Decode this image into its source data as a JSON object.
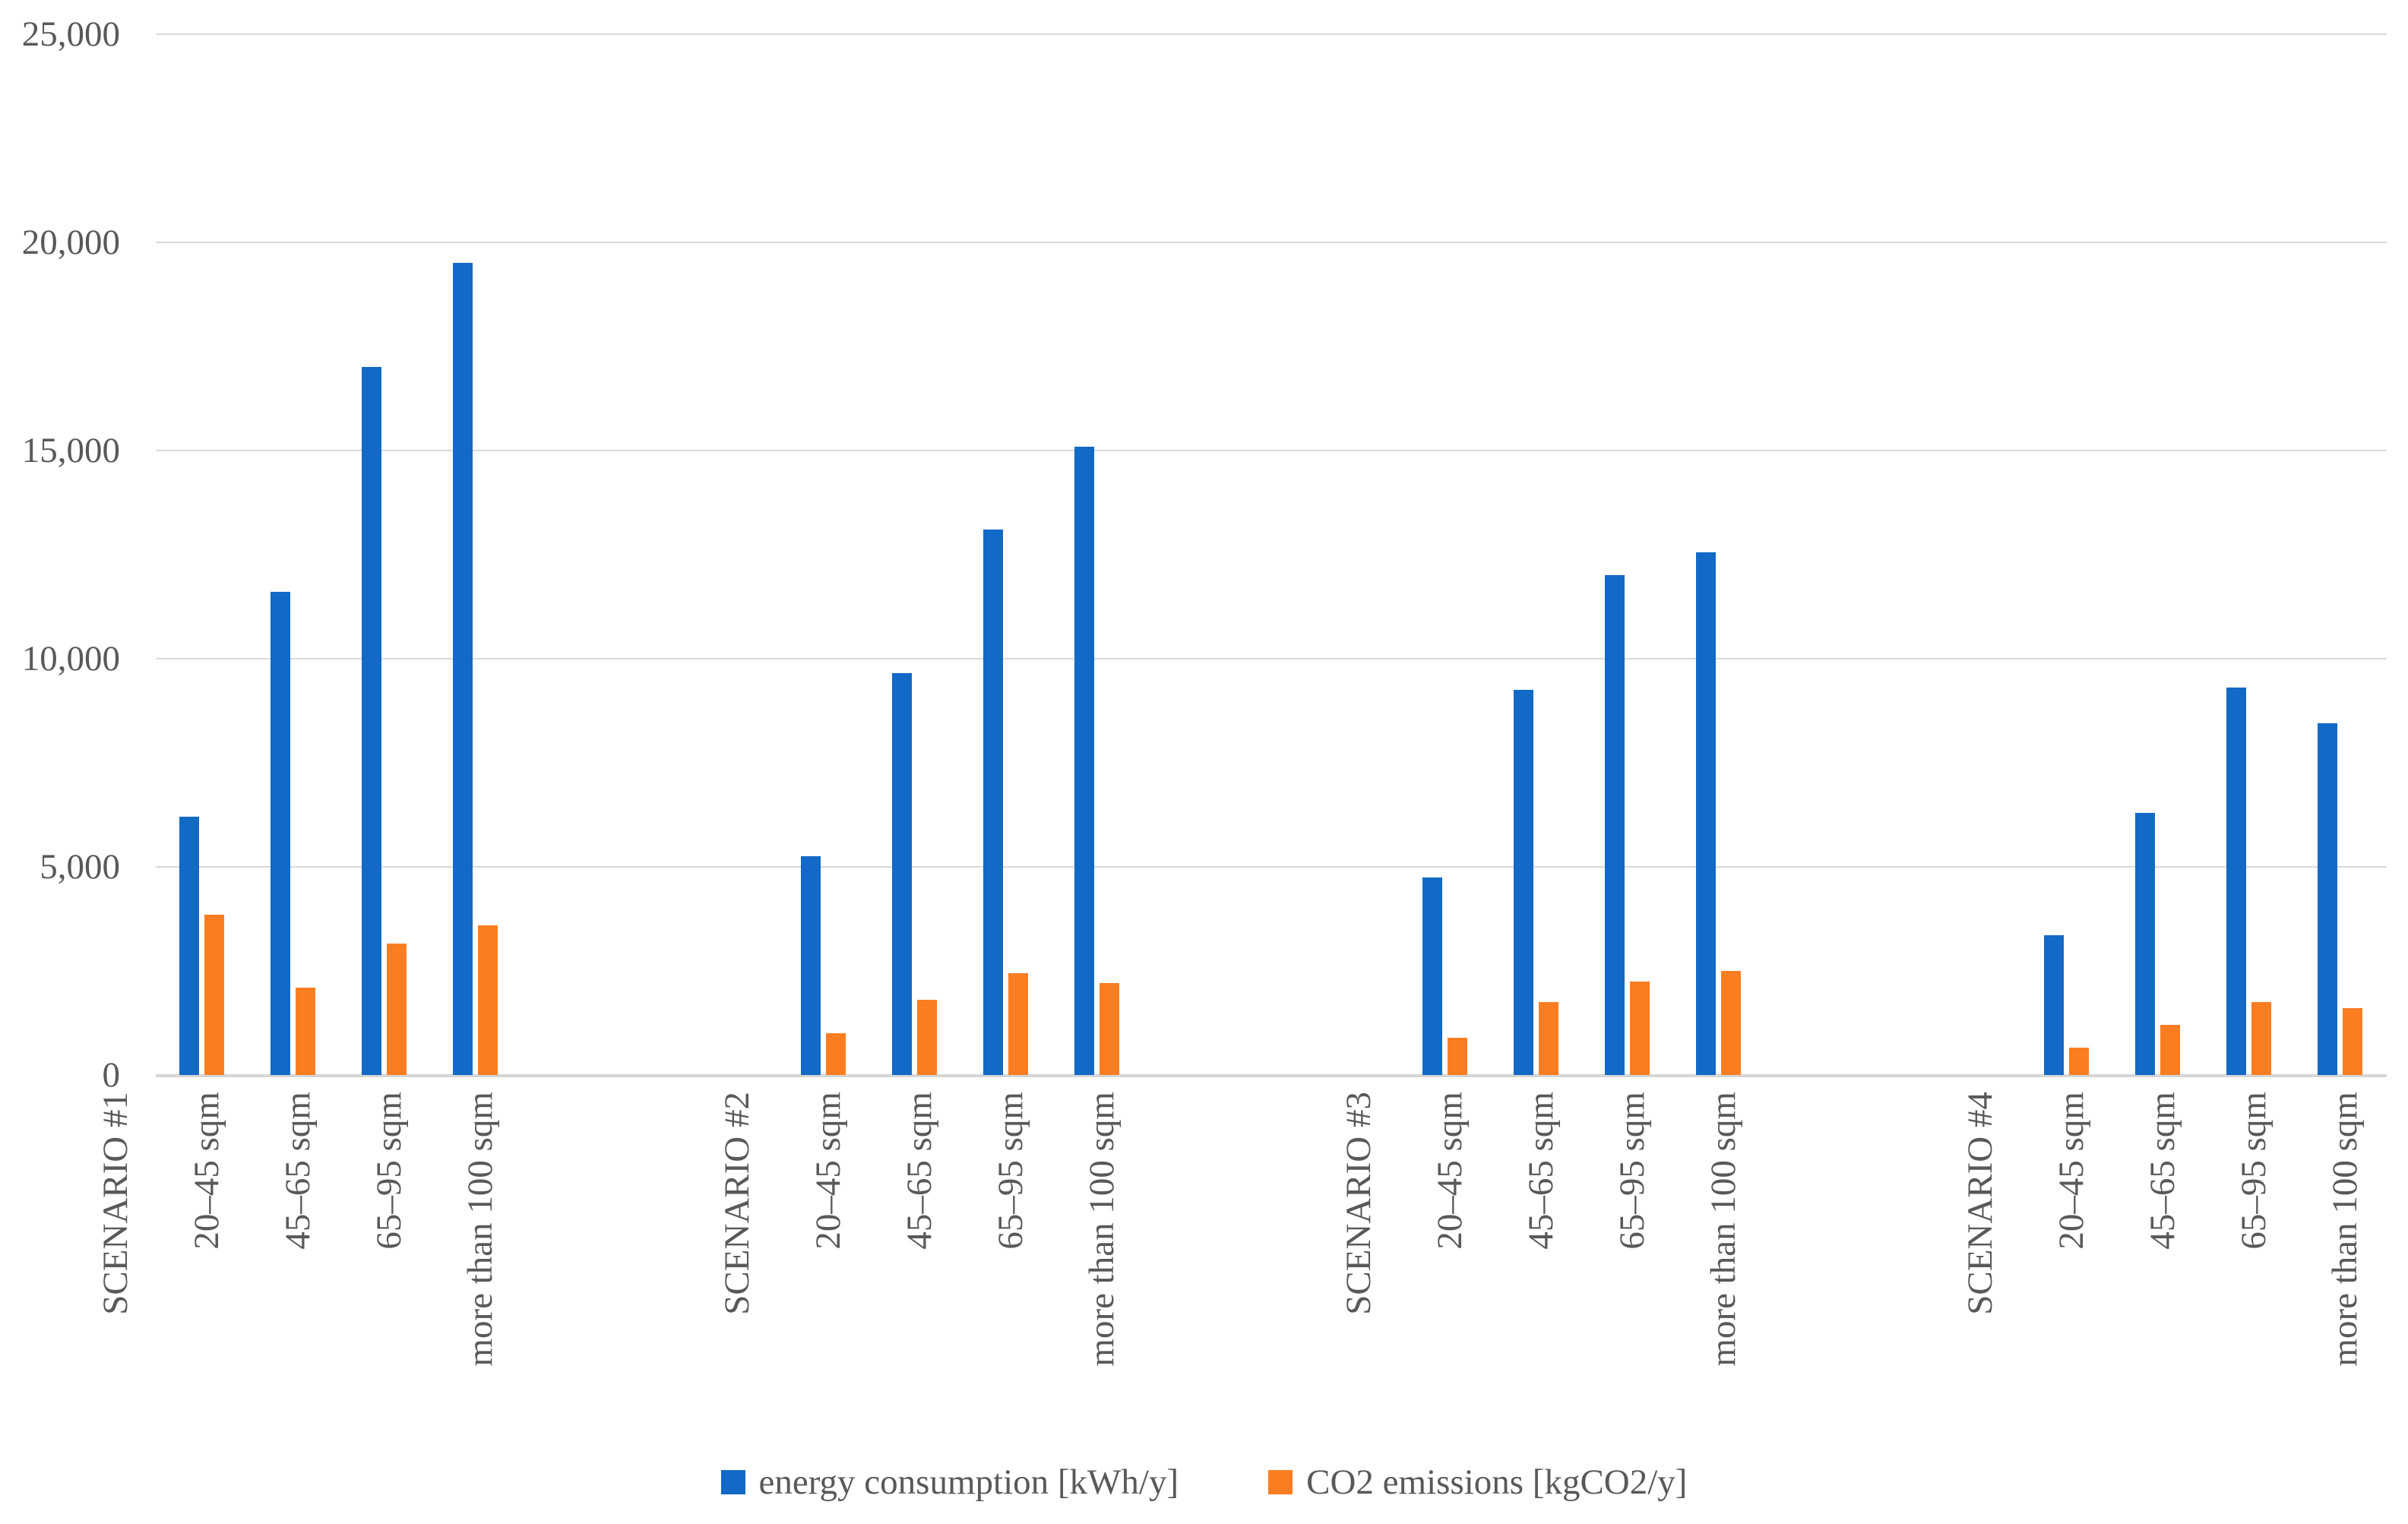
{
  "chart_data": {
    "type": "bar",
    "title": "",
    "xlabel": "",
    "ylabel": "",
    "ylim": [
      0,
      25000
    ],
    "grid": true,
    "legend_position": "bottom",
    "y_ticks": [
      {
        "value": 0,
        "label": "0"
      },
      {
        "value": 5000,
        "label": "5,000"
      },
      {
        "value": 10000,
        "label": "10,000"
      },
      {
        "value": 15000,
        "label": "15,000"
      },
      {
        "value": 20000,
        "label": "20,000"
      },
      {
        "value": 25000,
        "label": "25,000"
      }
    ],
    "categories": [
      "20–45 sqm",
      "45–65 sqm",
      "65–95 sqm",
      "more than 100 sqm"
    ],
    "groups": [
      {
        "label": "SCENARIO #1",
        "energy": [
          6200,
          11600,
          17000,
          19500
        ],
        "co2": [
          3850,
          2100,
          3150,
          3600
        ]
      },
      {
        "label": "SCENARIO #2",
        "energy": [
          5250,
          9650,
          13100,
          15100
        ],
        "co2": [
          1000,
          1800,
          2450,
          2200
        ]
      },
      {
        "label": "SCENARIO #3",
        "energy": [
          4750,
          9250,
          12000,
          12550
        ],
        "co2": [
          900,
          1750,
          2250,
          2500
        ]
      },
      {
        "label": "SCENARIO #4",
        "energy": [
          3350,
          6300,
          9300,
          8450
        ],
        "co2": [
          650,
          1200,
          1750,
          1600
        ]
      }
    ],
    "series": [
      {
        "name": "energy consumption [kWh/y]",
        "key": "energy",
        "color": "#1269C6"
      },
      {
        "name": "CO2 emissions [kgCO2/y]",
        "key": "co2",
        "color": "#FB7D21"
      }
    ]
  },
  "colors": {
    "energy": "#1269C6",
    "co2": "#FB7D21",
    "gridline": "#D9D9D9",
    "axis": "#D6D6D6",
    "text": "#595959"
  }
}
